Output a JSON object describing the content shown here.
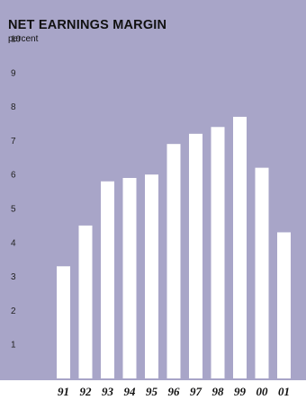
{
  "colors": {
    "panel_background": "#a8a5c8",
    "bar_fill": "#ffffff",
    "text": "#111111"
  },
  "chart_data": {
    "type": "bar",
    "title": "NET EARNINGS MARGIN",
    "subtitle": "percent",
    "xlabel": "",
    "ylabel": "",
    "ylim": [
      0,
      10
    ],
    "yticks": [
      1,
      2,
      3,
      4,
      5,
      6,
      7,
      8,
      9,
      10
    ],
    "grid": false,
    "legend": "none",
    "categories": [
      "91",
      "92",
      "93",
      "94",
      "95",
      "96",
      "97",
      "98",
      "99",
      "00",
      "01"
    ],
    "values": [
      3.3,
      4.5,
      5.8,
      5.9,
      6.0,
      6.9,
      7.2,
      7.4,
      7.7,
      6.2,
      4.3
    ]
  }
}
